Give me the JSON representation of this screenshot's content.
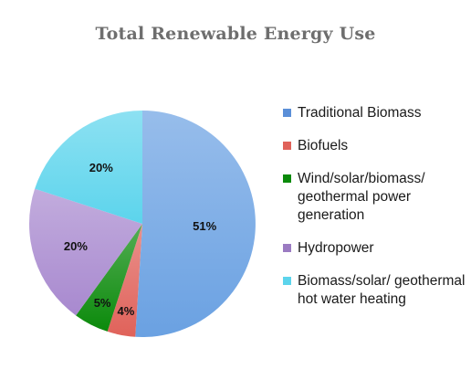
{
  "chart_data": {
    "type": "pie",
    "title": "Total Renewable Energy Use",
    "slices": [
      {
        "label": "Traditional Biomass",
        "value": 51,
        "value_label": "51%",
        "color": "#6aa1e2"
      },
      {
        "label": "Biofuels",
        "value": 4,
        "value_label": "4%",
        "color": "#e0625a"
      },
      {
        "label": "Wind/solar/biomass/ geothermal power generation",
        "value": 5,
        "value_label": "5%",
        "color": "#0b8a0b"
      },
      {
        "label": "Hydropower",
        "value": 20,
        "value_label": "20%",
        "color": "#a889cf"
      },
      {
        "label": "Biomass/solar/ geothermal hot water heating",
        "value": 20,
        "value_label": "20%",
        "color": "#5cd4ec"
      }
    ],
    "legend_position": "right"
  },
  "legend": {
    "items": [
      {
        "label": "Traditional Biomass",
        "color": "#5b8fd8"
      },
      {
        "label": "Biofuels",
        "color": "#e0625a"
      },
      {
        "label": "Wind/solar/biomass/ geothermal power generation",
        "color": "#0b8a0b"
      },
      {
        "label": "Hydropower",
        "color": "#9b7bc2"
      },
      {
        "label": "Biomass/solar/ geothermal hot water heating",
        "color": "#5cd4ec"
      }
    ]
  }
}
